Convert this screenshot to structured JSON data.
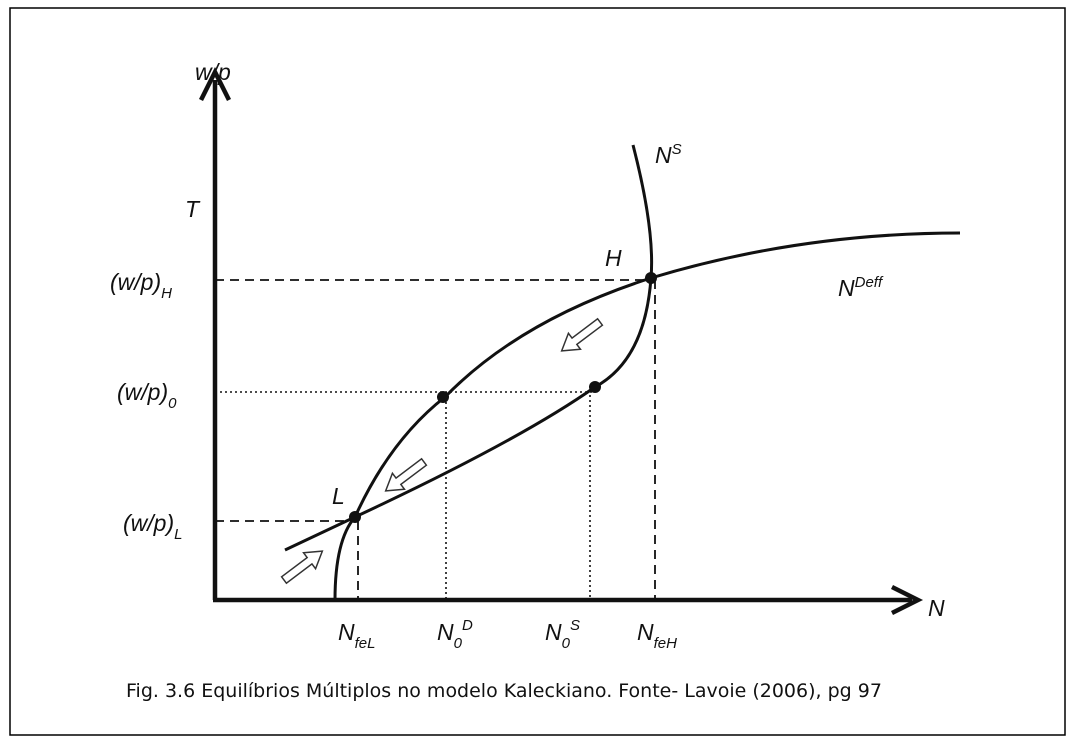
{
  "y_axis": {
    "label": "w/p",
    "top_label": "T"
  },
  "x_axis": {
    "label": "N"
  },
  "curves": {
    "supply": {
      "base": "N",
      "sup": "S"
    },
    "demand": {
      "base": "N",
      "sup": "Deff"
    }
  },
  "points": {
    "high": "H",
    "low": "L"
  },
  "y_levels": [
    {
      "base": "(w/p)",
      "sub": "H"
    },
    {
      "base": "(w/p)",
      "sub": "0"
    },
    {
      "base": "(w/p)",
      "sub": "L"
    }
  ],
  "x_levels": [
    {
      "base": "N",
      "sub": "feL"
    },
    {
      "base": "N",
      "sub": "0",
      "sup": "D"
    },
    {
      "base": "N",
      "sub": "0",
      "sup": "S"
    },
    {
      "base": "N",
      "sub": "feH"
    }
  ],
  "caption": "Fig. 3.6 Equilíbrios Múltiplos no modelo Kaleckiano. Fonte- Lavoie (2006), pg 97"
}
